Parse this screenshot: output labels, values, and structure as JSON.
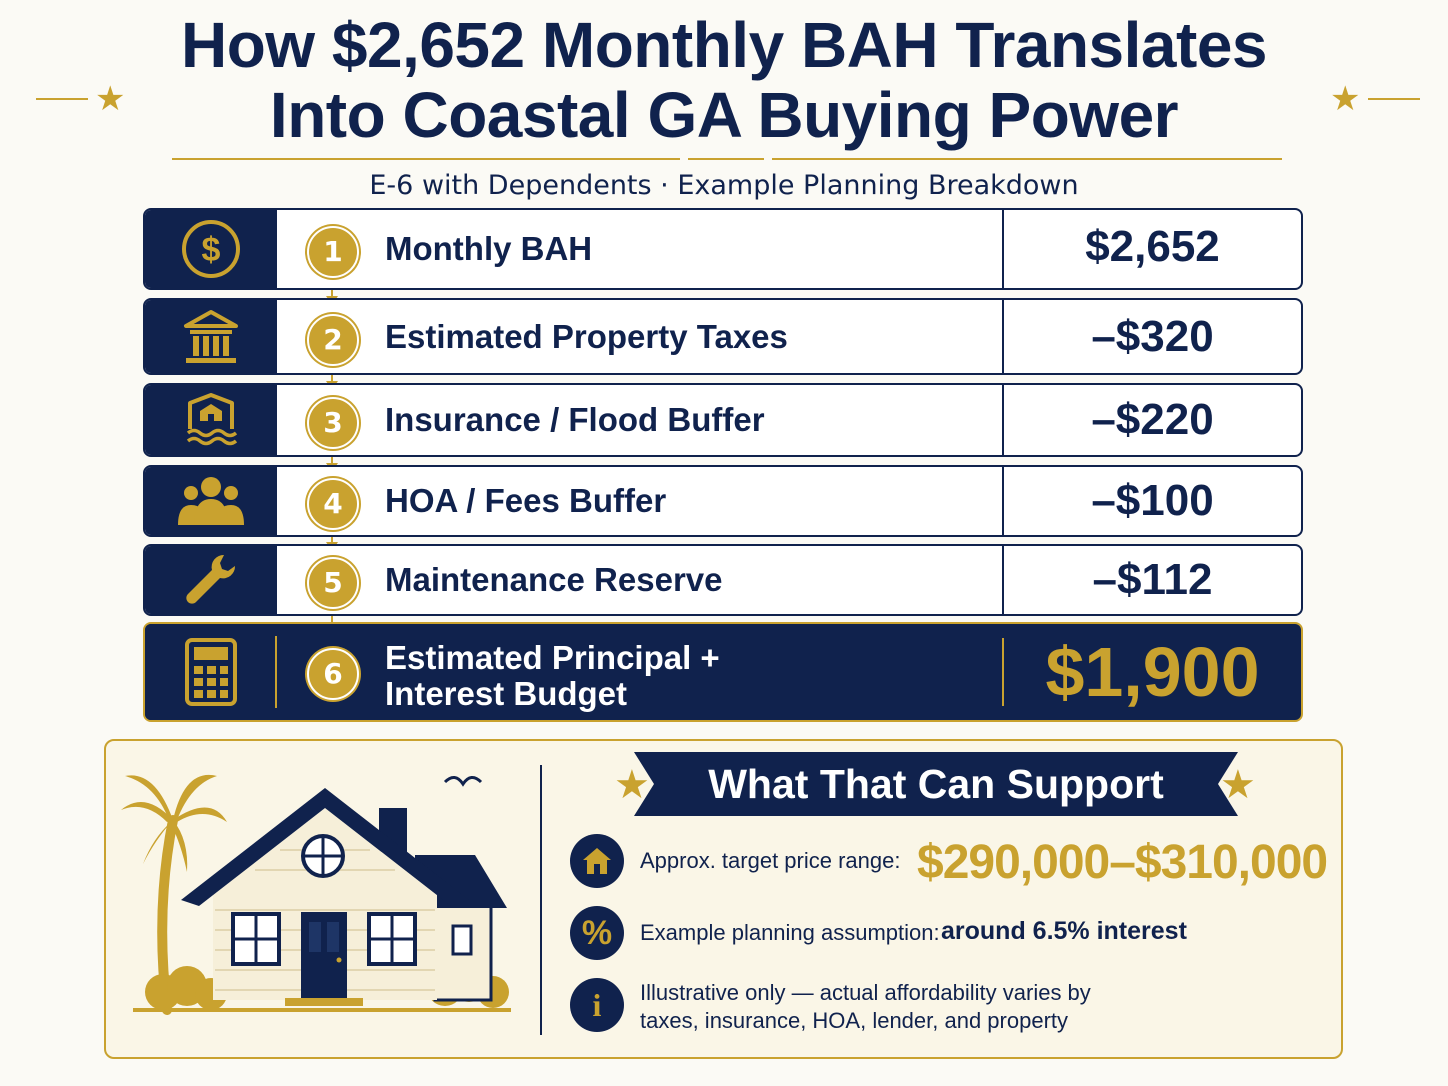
{
  "title": {
    "line1": "How $2,652 Monthly BAH Translates",
    "line2": "Into Coastal GA Buying Power"
  },
  "subtitle": "E-6 with Dependents · Example Planning Breakdown",
  "colors": {
    "navy": "#10224d",
    "gold": "#c9a22f",
    "cream": "#faf6e7"
  },
  "rows": [
    {
      "num": "1",
      "icon": "dollar-coin-icon",
      "label": "Monthly BAH",
      "value": "$2,652"
    },
    {
      "num": "2",
      "icon": "bank-building-icon",
      "label": "Estimated Property Taxes",
      "value": "–$320"
    },
    {
      "num": "3",
      "icon": "house-flood-icon",
      "label": "Insurance / Flood Buffer",
      "value": "–$220"
    },
    {
      "num": "4",
      "icon": "people-group-icon",
      "label": "HOA / Fees Buffer",
      "value": "–$100"
    },
    {
      "num": "5",
      "icon": "wrench-icon",
      "label": "Maintenance Reserve",
      "value": "–$112"
    },
    {
      "num": "6",
      "icon": "calculator-icon",
      "label": "Estimated Principal + Interest Budget",
      "value": "$1,900"
    }
  ],
  "support": {
    "heading": "What That Can Support",
    "price_label": "Approx. target price range:",
    "price_value": "$290,000–$310,000",
    "assumption_label": "Example planning assumption:",
    "assumption_value": "around 6.5% interest",
    "note_line1": "Illustrative only — actual affordability varies by",
    "note_line2": "taxes, insurance, HOA, lender, and property",
    "icon_home": "home-icon",
    "icon_percent": "percent-icon",
    "icon_info": "info-icon"
  }
}
